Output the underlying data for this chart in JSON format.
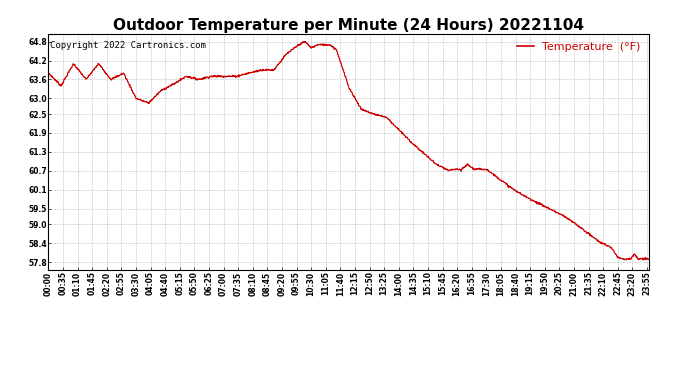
{
  "title": "Outdoor Temperature per Minute (24 Hours) 20221104",
  "copyright": "Copyright 2022 Cartronics.com",
  "legend_label": "Temperature  (°F)",
  "line_color": "#cc0000",
  "background_color": "#ffffff",
  "grid_color": "#aaaaaa",
  "yticks": [
    57.8,
    58.4,
    59.0,
    59.5,
    60.1,
    60.7,
    61.3,
    61.9,
    62.5,
    63.0,
    63.6,
    64.2,
    64.8
  ],
  "ymin": 57.55,
  "ymax": 65.05,
  "title_fontsize": 11,
  "copyright_fontsize": 6.5,
  "legend_fontsize": 8,
  "tick_label_fontsize": 5.5
}
